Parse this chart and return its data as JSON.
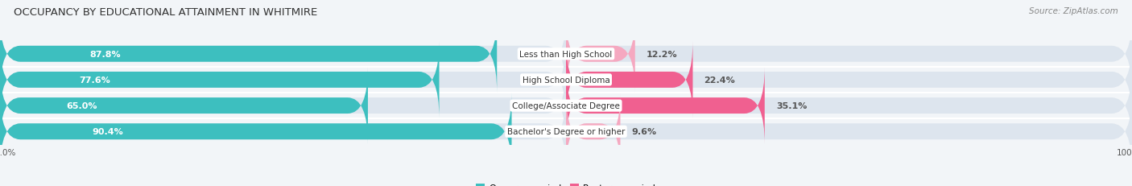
{
  "title": "OCCUPANCY BY EDUCATIONAL ATTAINMENT IN WHITMIRE",
  "source": "Source: ZipAtlas.com",
  "categories": [
    "Less than High School",
    "High School Diploma",
    "College/Associate Degree",
    "Bachelor's Degree or higher"
  ],
  "owner_values": [
    87.8,
    77.6,
    65.0,
    90.4
  ],
  "renter_values": [
    12.2,
    22.4,
    35.1,
    9.6
  ],
  "owner_color": "#3dbfbf",
  "renter_color_bright": "#f06090",
  "renter_color_light": "#f5a8c0",
  "background_color": "#f2f5f8",
  "bar_bg_color": "#dde5ee",
  "bar_height": 0.62,
  "title_fontsize": 9.5,
  "label_fontsize": 8.0,
  "tick_fontsize": 7.5,
  "legend_fontsize": 8.0,
  "source_fontsize": 7.5,
  "owner_label_color": "white",
  "renter_label_color": "#555555",
  "cat_label_color": "#333333"
}
